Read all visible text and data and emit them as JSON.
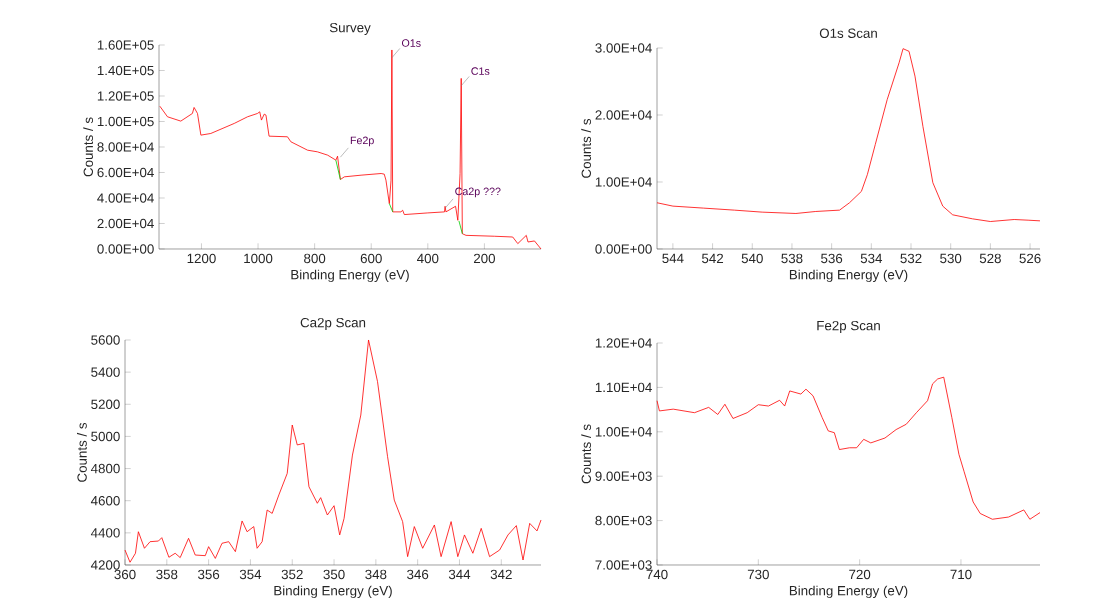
{
  "chart_data": [
    {
      "type": "line",
      "title": "Survey",
      "xlabel": "Binding Energy (eV)",
      "ylabel": "Counts / s",
      "xlim": [
        1350,
        0
      ],
      "ylim": [
        0,
        160000
      ],
      "xticks": [
        1200,
        1000,
        800,
        600,
        400,
        200
      ],
      "yticks": [
        {
          "value": 0,
          "label": "0.00E+00"
        },
        {
          "value": 20000,
          "label": "2.00E+04"
        },
        {
          "value": 40000,
          "label": "4.00E+04"
        },
        {
          "value": 60000,
          "label": "6.00E+04"
        },
        {
          "value": 80000,
          "label": "8.00E+04"
        },
        {
          "value": 100000,
          "label": "1.00E+05"
        },
        {
          "value": 120000,
          "label": "1.20E+05"
        },
        {
          "value": 140000,
          "label": "1.40E+05"
        },
        {
          "value": 160000,
          "label": "1.60E+05"
        }
      ],
      "x": [
        1347,
        1320,
        1273,
        1232,
        1226,
        1214,
        1202,
        1167,
        1084,
        1037,
        1002,
        994,
        988,
        978,
        972,
        961,
        896,
        884,
        825,
        790,
        754,
        725,
        719,
        709,
        695,
        636,
        565,
        554,
        548,
        536,
        530,
        527,
        524,
        495,
        489,
        483,
        400,
        341,
        339,
        336,
        302,
        294,
        286,
        282,
        278,
        265,
        165,
        100,
        82,
        52,
        46,
        23,
        0
      ],
      "series": [
        {
          "color": "#ff0000",
          "values": [
            112000,
            103700,
            100300,
            106300,
            111000,
            106300,
            89300,
            90600,
            98500,
            103700,
            106300,
            107600,
            101100,
            105800,
            105000,
            88500,
            88000,
            84100,
            77500,
            76200,
            73600,
            69700,
            72800,
            54500,
            56600,
            57900,
            59200,
            58700,
            54000,
            35600,
            54000,
            156100,
            29100,
            29100,
            30400,
            27000,
            28300,
            29100,
            33500,
            29100,
            33500,
            22500,
            59200,
            133800,
            12000,
            10700,
            10000,
            9400,
            4200,
            10700,
            5500,
            6300,
            0
          ]
        },
        {
          "color": "#00cc00",
          "x": [
            725,
            709,
            700,
            536,
            524,
            300,
            290,
            278
          ],
          "values": [
            69700,
            54500,
            null,
            35600,
            29100,
            null,
            22000,
            12000
          ]
        }
      ],
      "annotations": [
        {
          "text": "Fe2p",
          "x": 709,
          "y": 72000
        },
        {
          "text": "O1s",
          "x": 527,
          "y": 150000
        },
        {
          "text": "Ca2p ???",
          "x": 339,
          "y": 32000
        },
        {
          "text": "C1s",
          "x": 282,
          "y": 128000
        }
      ]
    },
    {
      "type": "line",
      "title": "O1s Scan",
      "xlabel": "Binding Energy (eV)",
      "ylabel": "Counts / s",
      "xlim": [
        544.8,
        525.5
      ],
      "ylim": [
        0,
        30000
      ],
      "xticks": [
        544,
        542,
        540,
        538,
        536,
        534,
        532,
        530,
        528,
        526
      ],
      "yticks": [
        {
          "value": 0,
          "label": "0.00E+00"
        },
        {
          "value": 10000,
          "label": "1.00E+04"
        },
        {
          "value": 20000,
          "label": "2.00E+04"
        },
        {
          "value": 30000,
          "label": "3.00E+04"
        }
      ],
      "x": [
        544.8,
        544,
        542.45,
        540.9,
        539.5,
        537.8,
        536.8,
        535.6,
        535.1,
        534.5,
        534.2,
        533.8,
        533.2,
        532.6,
        532.4,
        532.1,
        531.8,
        531.4,
        530.9,
        530.4,
        529.9,
        528.9,
        528.0,
        526.8,
        526.1,
        525.5
      ],
      "series": [
        {
          "color": "#ff0000",
          "values": [
            6900,
            6400,
            6100,
            5800,
            5500,
            5300,
            5600,
            5800,
            6900,
            8600,
            11100,
            15600,
            22300,
            27800,
            29900,
            29500,
            25800,
            18300,
            9900,
            6400,
            5100,
            4500,
            4100,
            4400,
            4300,
            4200
          ]
        }
      ]
    },
    {
      "type": "line",
      "title": "Ca2p Scan",
      "xlabel": "Binding Energy (eV)",
      "ylabel": "Counts / s",
      "xlim": [
        360,
        340.1
      ],
      "ylim": [
        4200,
        5600
      ],
      "xticks": [
        360,
        358,
        356,
        354,
        352,
        350,
        348,
        346,
        344,
        342
      ],
      "yticks": [
        4200,
        4400,
        4600,
        4800,
        5000,
        5200,
        5400,
        5600
      ],
      "x": [
        360.0,
        359.76,
        359.5,
        359.36,
        359.07,
        358.8,
        358.4,
        358.24,
        357.9,
        357.6,
        357.36,
        356.96,
        356.64,
        356.16,
        356.0,
        355.68,
        355.36,
        355.04,
        354.72,
        354.4,
        354.16,
        353.84,
        353.68,
        353.44,
        353.2,
        352.96,
        352.64,
        352.24,
        352.0,
        351.76,
        351.44,
        351.2,
        350.8,
        350.64,
        350.32,
        350.0,
        349.73,
        349.52,
        349.12,
        348.72,
        348.35,
        347.92,
        347.44,
        347.12,
        346.72,
        346.48,
        346.16,
        345.76,
        345.2,
        344.88,
        344.4,
        344.08,
        343.76,
        343.36,
        342.96,
        342.56,
        342.08,
        341.68,
        341.28,
        340.96,
        340.64,
        340.29,
        340.1
      ],
      "series": [
        {
          "color": "#ff0000",
          "values": [
            4293,
            4217,
            4273,
            4407,
            4304,
            4345,
            4349,
            4370,
            4248,
            4273,
            4246,
            4366,
            4262,
            4258,
            4314,
            4241,
            4335,
            4345,
            4283,
            4474,
            4407,
            4439,
            4304,
            4345,
            4542,
            4521,
            4636,
            4770,
            5071,
            4947,
            4957,
            4687,
            4584,
            4619,
            4511,
            4569,
            4387,
            4490,
            4884,
            5133,
            5600,
            5341,
            4874,
            4604,
            4470,
            4252,
            4439,
            4304,
            4449,
            4252,
            4470,
            4252,
            4387,
            4273,
            4428,
            4252,
            4293,
            4387,
            4445,
            4231,
            4459,
            4412,
            4480
          ]
        }
      ]
    },
    {
      "type": "line",
      "title": "Fe2p Scan",
      "xlabel": "Binding Energy (eV)",
      "ylabel": "Counts / s",
      "xlim": [
        740,
        702.2
      ],
      "ylim": [
        7000,
        12000
      ],
      "xticks": [
        740,
        730,
        720,
        710
      ],
      "yticks": [
        {
          "value": 7000,
          "label": "7.00E+03"
        },
        {
          "value": 8000,
          "label": "8.00E+03"
        },
        {
          "value": 9000,
          "label": "9.00E+03"
        },
        {
          "value": 10000,
          "label": "1.00E+04"
        },
        {
          "value": 11000,
          "label": "1.10E+04"
        },
        {
          "value": 12000,
          "label": "1.20E+04"
        }
      ],
      "x": [
        740,
        739.76,
        738.4,
        736.3,
        734.9,
        734.0,
        733.3,
        732.5,
        731.1,
        730.0,
        729.0,
        727.9,
        727.4,
        726.9,
        725.8,
        725.3,
        724.6,
        723.7,
        723.1,
        722.5,
        722.0,
        721.0,
        720.3,
        719.6,
        718.9,
        717.5,
        716.4,
        715.4,
        714.4,
        713.3,
        712.8,
        712.3,
        711.7,
        710.9,
        710.2,
        709.7,
        708.8,
        708.1,
        706.9,
        705.3,
        703.8,
        703.2,
        702.2
      ],
      "series": [
        {
          "color": "#ff0000",
          "values": [
            10700,
            10470,
            10510,
            10430,
            10550,
            10390,
            10620,
            10300,
            10430,
            10610,
            10580,
            10710,
            10580,
            10920,
            10850,
            10960,
            10810,
            10320,
            10020,
            9980,
            9600,
            9640,
            9640,
            9830,
            9750,
            9860,
            10050,
            10170,
            10430,
            10700,
            11080,
            11190,
            11230,
            10320,
            9490,
            9110,
            8420,
            8160,
            8030,
            8080,
            8240,
            8030,
            8180
          ]
        }
      ]
    }
  ]
}
